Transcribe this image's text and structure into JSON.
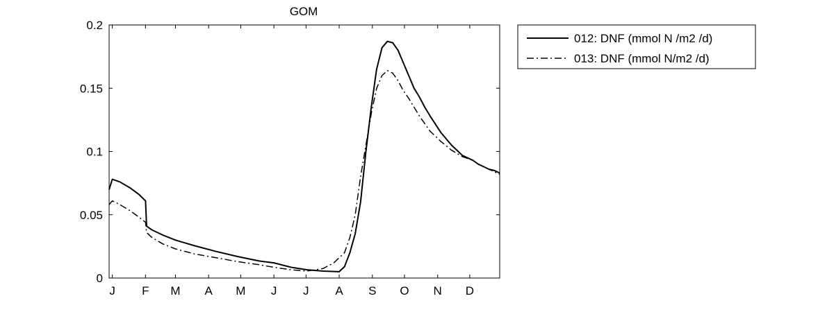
{
  "chart_data": {
    "type": "line",
    "title": "GOM",
    "xlabel": "",
    "ylabel": "",
    "xlim": [
      0,
      365
    ],
    "ylim": [
      0,
      0.2
    ],
    "grid": false,
    "legend_position": "outside-top-right",
    "y_ticks": [
      0,
      0.05,
      0.1,
      0.15,
      0.2
    ],
    "y_tick_labels": [
      "0",
      "0.05",
      "0.1",
      "0.15",
      "0.2"
    ],
    "x_ticks": [
      3,
      34,
      62,
      93,
      123,
      154,
      184,
      215,
      246,
      276,
      307,
      337
    ],
    "x_tick_labels": [
      "J",
      "F",
      "M",
      "A",
      "M",
      "J",
      "J",
      "A",
      "S",
      "O",
      "N",
      "D"
    ],
    "series": [
      {
        "name": "012: DNF (mmol N /m2 /d)",
        "line_style": "solid",
        "color": "#000000",
        "x": [
          0,
          3,
          10,
          20,
          28,
          34,
          35,
          40,
          50,
          62,
          80,
          100,
          120,
          140,
          154,
          170,
          185,
          200,
          215,
          220,
          225,
          230,
          235,
          240,
          245,
          250,
          255,
          260,
          265,
          270,
          275,
          280,
          285,
          290,
          295,
          300,
          310,
          320,
          330,
          340,
          345,
          350,
          355,
          360,
          365
        ],
        "y": [
          0.07,
          0.078,
          0.076,
          0.071,
          0.066,
          0.061,
          0.041,
          0.038,
          0.034,
          0.03,
          0.0255,
          0.021,
          0.017,
          0.0135,
          0.012,
          0.0085,
          0.0065,
          0.0055,
          0.005,
          0.009,
          0.02,
          0.035,
          0.06,
          0.1,
          0.135,
          0.165,
          0.182,
          0.187,
          0.186,
          0.18,
          0.17,
          0.16,
          0.15,
          0.143,
          0.135,
          0.128,
          0.115,
          0.105,
          0.097,
          0.093,
          0.09,
          0.088,
          0.086,
          0.085,
          0.083
        ]
      },
      {
        "name": "013: DNF (mmol N/m2 /d)",
        "line_style": "dashdot",
        "color": "#000000",
        "x": [
          0,
          3,
          10,
          20,
          28,
          34,
          35,
          40,
          50,
          62,
          80,
          100,
          120,
          140,
          154,
          170,
          185,
          200,
          210,
          220,
          225,
          230,
          235,
          240,
          245,
          250,
          255,
          260,
          265,
          270,
          275,
          280,
          285,
          290,
          295,
          300,
          310,
          320,
          330,
          340,
          345,
          350,
          355,
          360,
          365
        ],
        "y": [
          0.058,
          0.061,
          0.058,
          0.053,
          0.048,
          0.044,
          0.036,
          0.032,
          0.027,
          0.023,
          0.019,
          0.016,
          0.013,
          0.0105,
          0.0085,
          0.0065,
          0.0055,
          0.0075,
          0.012,
          0.02,
          0.032,
          0.05,
          0.08,
          0.105,
          0.13,
          0.15,
          0.16,
          0.164,
          0.162,
          0.156,
          0.148,
          0.142,
          0.135,
          0.128,
          0.122,
          0.116,
          0.108,
          0.101,
          0.096,
          0.093,
          0.09,
          0.088,
          0.086,
          0.084,
          0.082
        ]
      }
    ]
  }
}
